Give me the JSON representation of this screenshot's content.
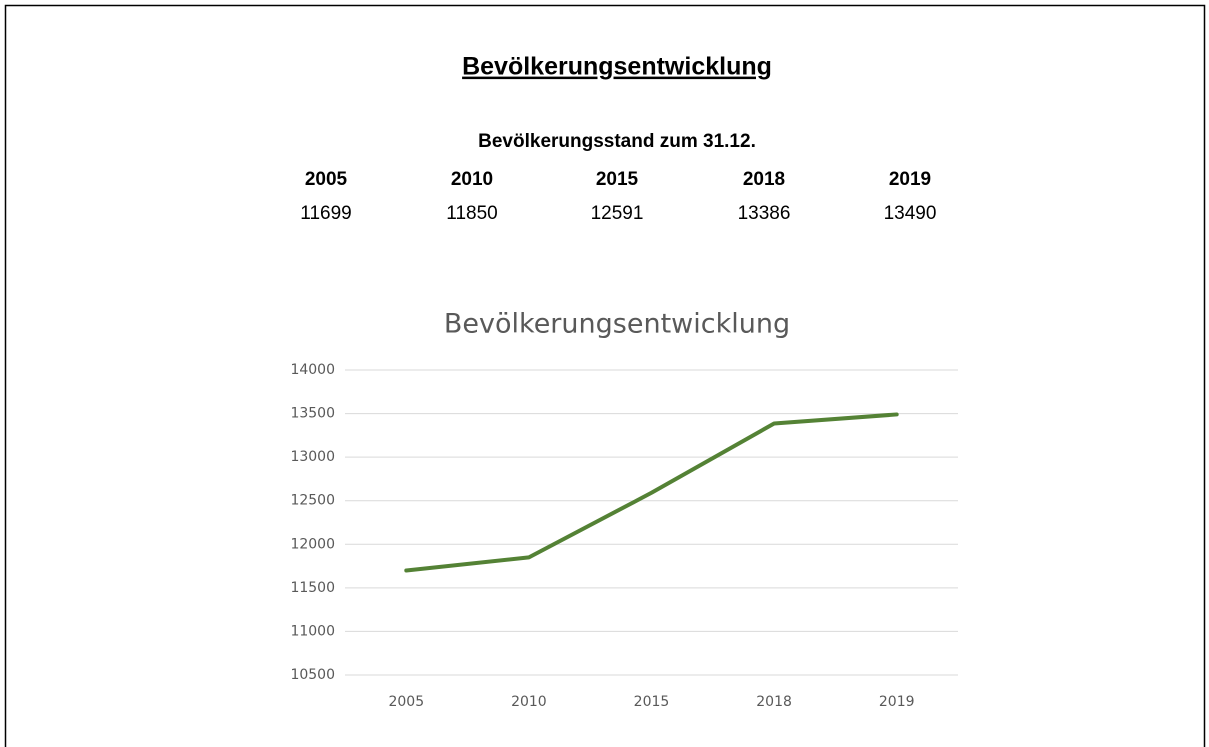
{
  "header": {
    "title": "Bevölkerungsentwicklung"
  },
  "table": {
    "caption": "Bevölkerungsstand zum 31.12.",
    "columns": [
      "2005",
      "2010",
      "2015",
      "2018",
      "2019"
    ],
    "rows": [
      [
        11699,
        11850,
        12591,
        13386,
        13490
      ]
    ]
  },
  "chart_data": {
    "type": "line",
    "title": "Bevölkerungsentwicklung",
    "categories": [
      "2005",
      "2010",
      "2015",
      "2018",
      "2019"
    ],
    "values": [
      11699,
      11850,
      12591,
      13386,
      13490
    ],
    "color": "#548235",
    "ylim": [
      10500,
      14000
    ],
    "yticks": [
      10500,
      11000,
      11500,
      12000,
      12500,
      13000,
      13500,
      14000
    ],
    "grid": true
  }
}
